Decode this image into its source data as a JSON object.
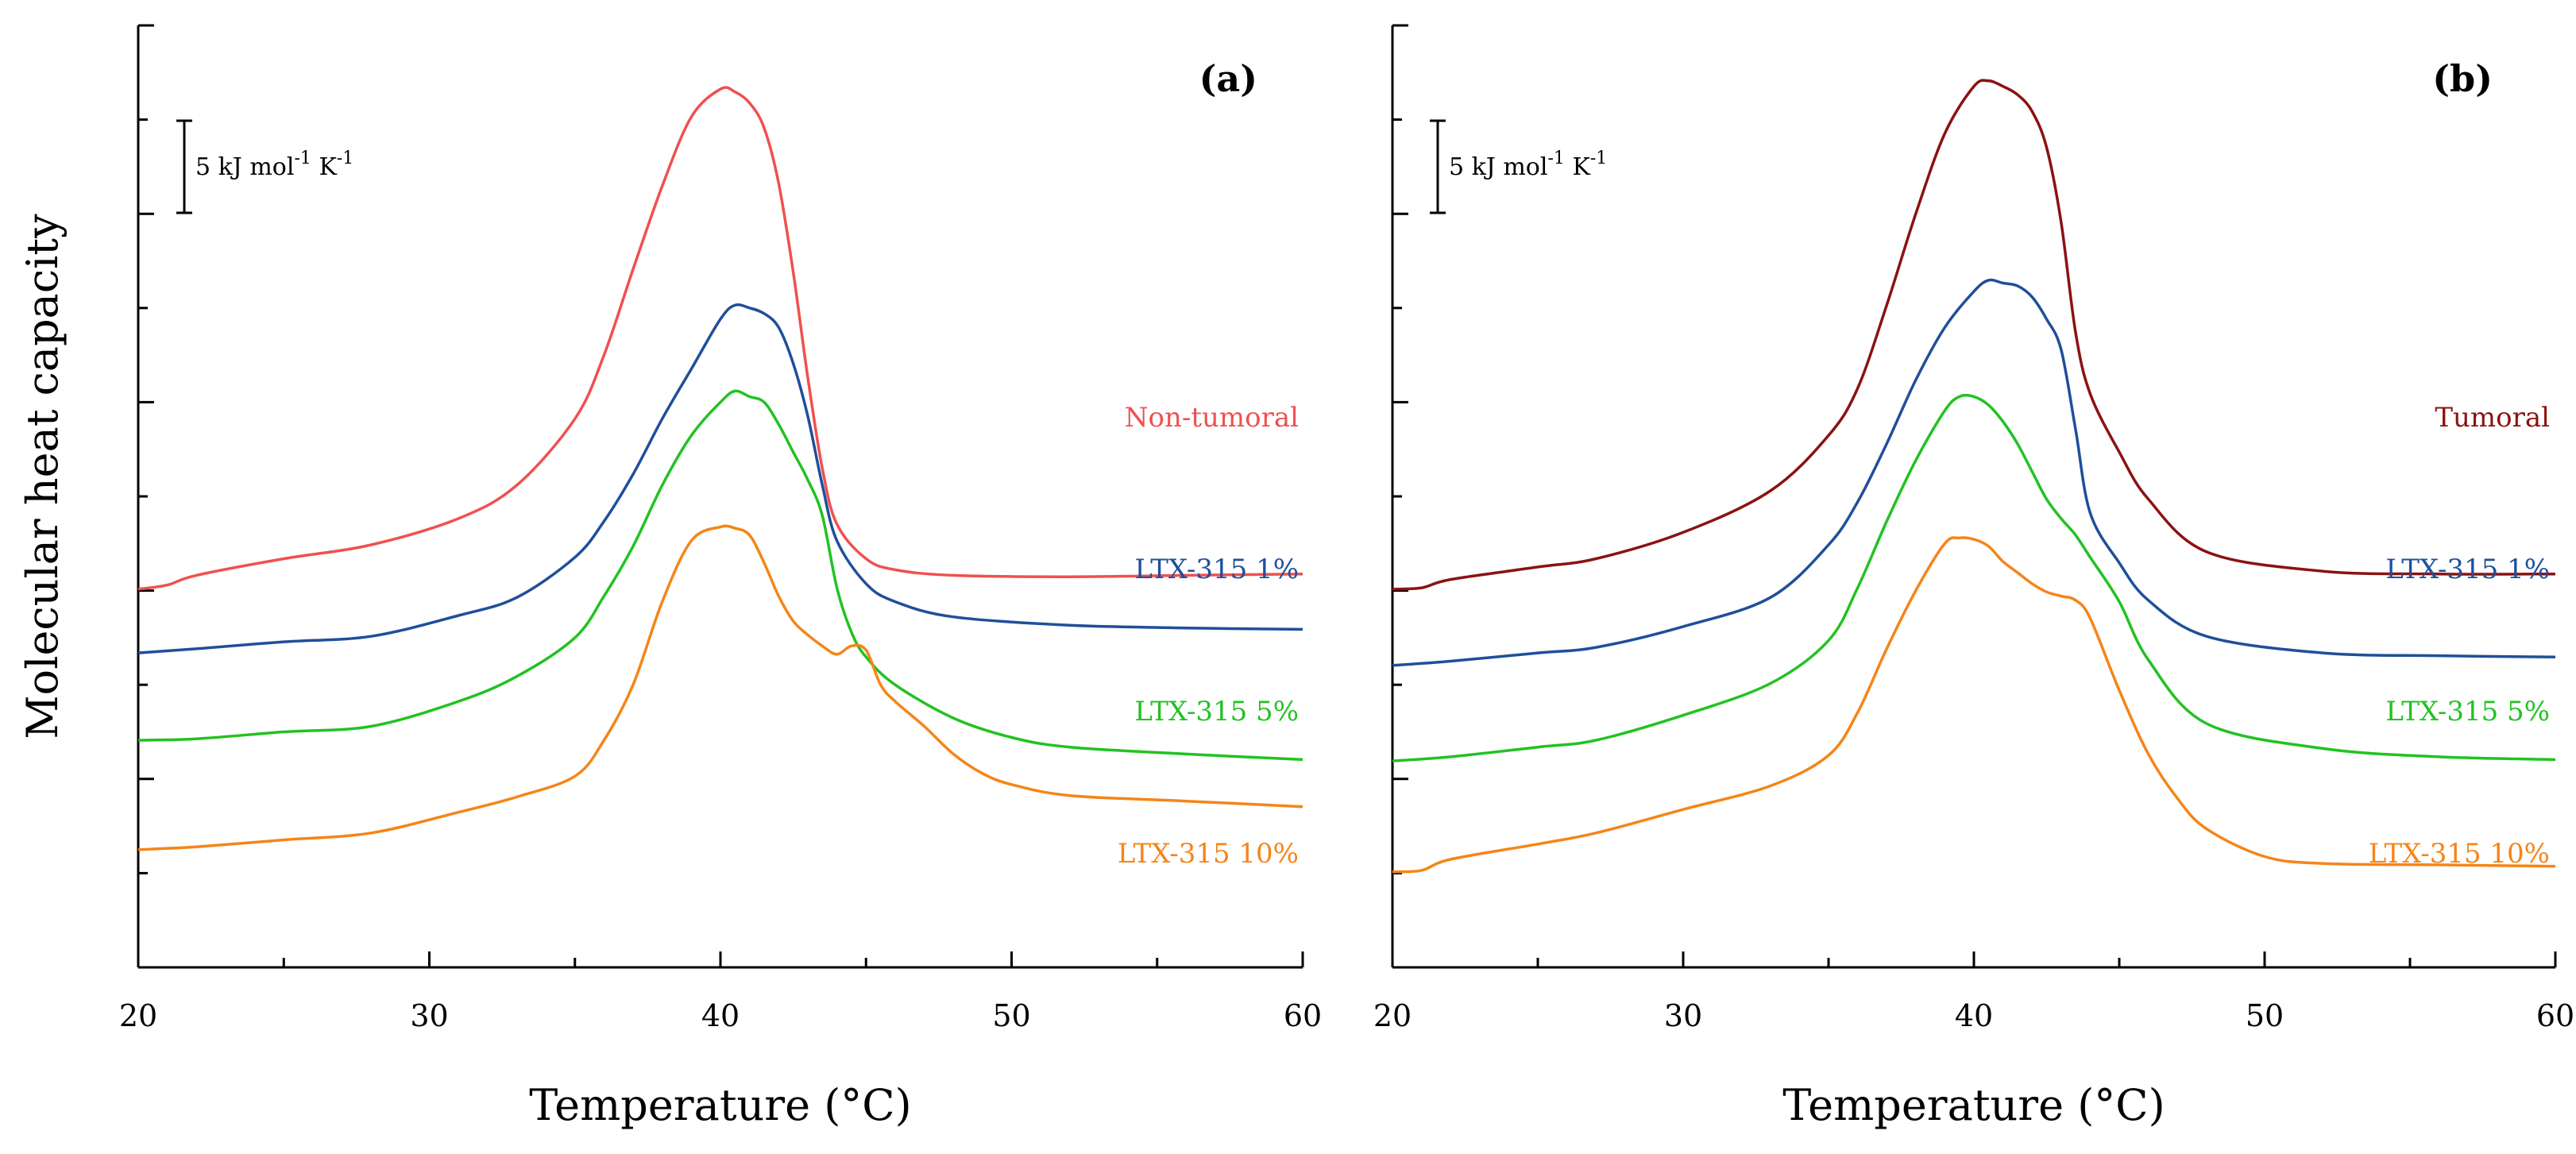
{
  "figure": {
    "ylabel": "Molecular heat capacity"
  },
  "chart_data": [
    {
      "type": "line",
      "panel_label": "(a)",
      "xlabel": "Temperature (°C)",
      "ylabel": "Molecular heat capacity",
      "xlim": [
        20,
        60
      ],
      "x_ticks": [
        "20",
        "30",
        "40",
        "50",
        "60"
      ],
      "y_tick_labels": false,
      "scale_bar": {
        "value": 5,
        "label": "5 kJ mol-1 K-1"
      },
      "grid": false,
      "series": [
        {
          "name": "Non-tumoral",
          "color": "#f05050",
          "x": [
            20,
            21,
            22,
            25,
            28,
            31,
            33,
            35,
            36,
            37,
            38,
            39,
            40,
            40.5,
            41,
            41.5,
            42,
            42.5,
            43,
            43.5,
            44,
            45,
            46,
            48,
            52,
            56,
            60
          ],
          "y": [
            0.85,
            1.0,
            1.35,
            1.95,
            2.45,
            3.4,
            4.6,
            7.0,
            9.3,
            12.4,
            15.4,
            17.9,
            18.9,
            18.8,
            18.4,
            17.5,
            15.5,
            12.3,
            8.5,
            5.2,
            3.2,
            1.95,
            1.55,
            1.35,
            1.3,
            1.35,
            1.4
          ]
        },
        {
          "name": "LTX-315 1%",
          "color": "#1f4f9a",
          "x": [
            20,
            22,
            25,
            28,
            31,
            33,
            35,
            36,
            37,
            38,
            39,
            40,
            40.5,
            41,
            41.5,
            42,
            42.5,
            43,
            43.5,
            44,
            45,
            46,
            48,
            52,
            56,
            60
          ],
          "y": [
            -1.45,
            -1.3,
            -1.05,
            -0.85,
            -0.1,
            0.55,
            2.0,
            3.3,
            5.0,
            7.0,
            8.8,
            10.6,
            11.1,
            11.0,
            10.8,
            10.3,
            9.0,
            7.1,
            4.6,
            2.6,
            1.05,
            0.4,
            -0.15,
            -0.45,
            -0.55,
            -0.6
          ]
        },
        {
          "name": "LTX-315 5%",
          "color": "#22c222",
          "x": [
            20,
            22,
            25,
            28,
            31,
            33,
            35,
            36,
            37,
            38,
            39,
            40,
            40.5,
            41,
            41.5,
            42,
            42.5,
            43,
            43.5,
            44,
            44.5,
            45,
            46,
            48,
            50,
            52,
            56,
            60
          ],
          "y": [
            -4.6,
            -4.55,
            -4.3,
            -4.1,
            -3.2,
            -2.3,
            -0.9,
            0.6,
            2.4,
            4.6,
            6.4,
            7.6,
            8.0,
            7.8,
            7.6,
            6.8,
            5.8,
            4.8,
            3.5,
            0.9,
            -0.7,
            -1.6,
            -2.6,
            -3.8,
            -4.5,
            -4.85,
            -5.1,
            -5.3
          ]
        },
        {
          "name": "LTX-315 10%",
          "color": "#f58518",
          "x": [
            20,
            22,
            25,
            28,
            31,
            33,
            35,
            36,
            37,
            38,
            39,
            40,
            40.5,
            41,
            41.5,
            42,
            42.5,
            43,
            43.5,
            44,
            44.5,
            45,
            45.5,
            46,
            47,
            48,
            49,
            50,
            52,
            56,
            60
          ],
          "y": [
            -8.55,
            -8.45,
            -8.2,
            -7.95,
            -7.2,
            -6.65,
            -5.9,
            -4.6,
            -2.6,
            0.4,
            2.6,
            3.1,
            3.05,
            2.8,
            1.8,
            0.6,
            -0.3,
            -0.8,
            -1.2,
            -1.5,
            -1.2,
            -1.35,
            -2.6,
            -3.2,
            -4.1,
            -5.1,
            -5.8,
            -6.2,
            -6.6,
            -6.8,
            -7.0
          ]
        }
      ]
    },
    {
      "type": "line",
      "panel_label": "(b)",
      "xlabel": "Temperature (°C)",
      "ylabel": "",
      "xlim": [
        20,
        60
      ],
      "x_ticks": [
        "20",
        "30",
        "40",
        "50",
        "60"
      ],
      "y_tick_labels": false,
      "scale_bar": {
        "value": 5,
        "label": "5 kJ mol-1 K-1"
      },
      "grid": false,
      "series": [
        {
          "name": "Tumoral",
          "color": "#8b1212",
          "x": [
            20,
            21,
            22,
            25,
            27,
            30,
            33,
            35,
            36,
            37,
            38,
            39,
            40,
            40.5,
            41,
            41.5,
            42,
            42.5,
            43,
            43.5,
            44,
            45,
            46,
            48,
            52,
            56,
            60
          ],
          "y": [
            0.85,
            0.9,
            1.2,
            1.65,
            1.95,
            2.9,
            4.4,
            6.4,
            8.1,
            11.1,
            14.4,
            17.3,
            19.0,
            19.2,
            19.0,
            18.7,
            18.1,
            16.8,
            14.1,
            10.1,
            7.9,
            5.8,
            4.1,
            2.2,
            1.5,
            1.4,
            1.4
          ]
        },
        {
          "name": "LTX-315 1%",
          "color": "#1f4f9a",
          "x": [
            20,
            22,
            25,
            27,
            30,
            33,
            35,
            36,
            37,
            38,
            39,
            40,
            40.5,
            41,
            41.5,
            42,
            42.5,
            43,
            43.5,
            44,
            45,
            46,
            48,
            52,
            56,
            60
          ],
          "y": [
            -1.9,
            -1.75,
            -1.45,
            -1.25,
            -0.5,
            0.55,
            2.45,
            4.0,
            6.1,
            8.4,
            10.3,
            11.6,
            12.0,
            11.9,
            11.8,
            11.4,
            10.6,
            9.5,
            6.6,
            3.6,
            1.8,
            0.45,
            -0.85,
            -1.45,
            -1.55,
            -1.6
          ]
        },
        {
          "name": "LTX-315 5%",
          "color": "#22c222",
          "x": [
            20,
            22,
            25,
            27,
            30,
            33,
            35,
            36,
            37,
            38,
            39,
            39.5,
            40,
            40.5,
            41,
            41.5,
            42,
            42.5,
            43,
            43.5,
            44,
            45,
            46,
            48,
            52,
            56,
            60
          ],
          "y": [
            -5.35,
            -5.2,
            -4.85,
            -4.6,
            -3.7,
            -2.55,
            -1.0,
            0.9,
            3.3,
            5.5,
            7.3,
            7.8,
            7.8,
            7.5,
            6.9,
            6.1,
            5.1,
            4.1,
            3.4,
            2.8,
            2.0,
            0.4,
            -1.7,
            -4.0,
            -4.9,
            -5.2,
            -5.3
          ]
        },
        {
          "name": "LTX-315 10%",
          "color": "#f58518",
          "x": [
            20,
            21,
            22,
            25,
            27,
            30,
            33,
            35,
            36,
            37,
            38,
            39,
            39.5,
            40,
            40.5,
            41,
            41.5,
            42,
            42.5,
            43,
            43.5,
            44,
            45,
            46,
            47,
            48,
            50,
            52,
            56,
            60
          ],
          "y": [
            -9.35,
            -9.3,
            -8.9,
            -8.35,
            -7.95,
            -7.1,
            -6.25,
            -5.15,
            -3.6,
            -1.3,
            0.8,
            2.5,
            2.7,
            2.65,
            2.4,
            1.85,
            1.45,
            1.05,
            0.75,
            0.6,
            0.45,
            -0.2,
            -2.8,
            -5.1,
            -6.7,
            -7.8,
            -8.8,
            -9.05,
            -9.1,
            -9.15
          ]
        }
      ]
    }
  ]
}
